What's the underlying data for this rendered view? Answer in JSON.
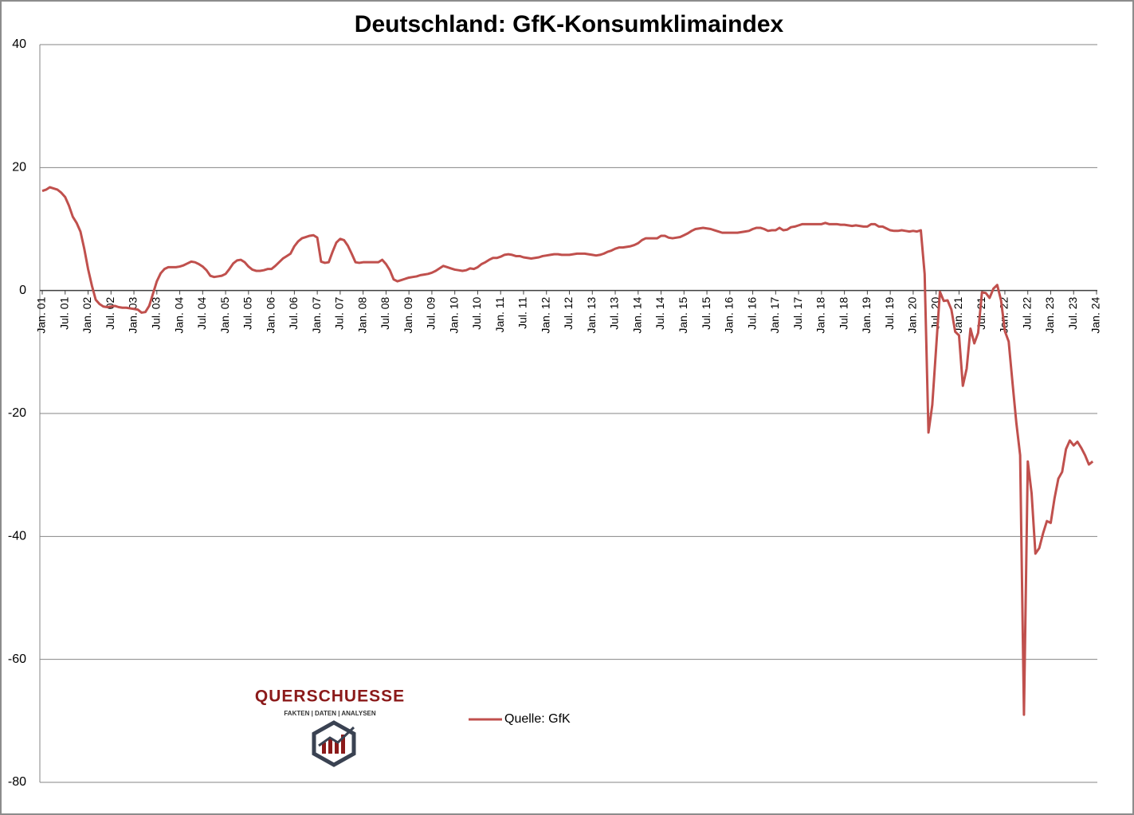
{
  "chart_data": {
    "type": "line",
    "title": "Deutschland: GfK-Konsumklimaindex",
    "categories": [
      "Jan. 01",
      null,
      null,
      null,
      null,
      null,
      "Jul. 01",
      null,
      null,
      null,
      null,
      null,
      "Jan. 02",
      null,
      null,
      null,
      null,
      null,
      "Jul. 02",
      null,
      null,
      null,
      null,
      null,
      "Jan. 03",
      null,
      null,
      null,
      null,
      null,
      "Jul. 03",
      null,
      null,
      null,
      null,
      null,
      "Jan. 04",
      null,
      null,
      null,
      null,
      null,
      "Jul. 04",
      null,
      null,
      null,
      null,
      null,
      "Jan. 05",
      null,
      null,
      null,
      null,
      null,
      "Jul. 05",
      null,
      null,
      null,
      null,
      null,
      "Jan. 06",
      null,
      null,
      null,
      null,
      null,
      "Jul. 06",
      null,
      null,
      null,
      null,
      null,
      "Jan. 07",
      null,
      null,
      null,
      null,
      null,
      "Jul. 07",
      null,
      null,
      null,
      null,
      null,
      "Jan. 08",
      null,
      null,
      null,
      null,
      null,
      "Jul. 08",
      null,
      null,
      null,
      null,
      null,
      "Jan. 09",
      null,
      null,
      null,
      null,
      null,
      "Jul. 09",
      null,
      null,
      null,
      null,
      null,
      "Jan. 10",
      null,
      null,
      null,
      null,
      null,
      "Jul. 10",
      null,
      null,
      null,
      null,
      null,
      "Jan. 11",
      null,
      null,
      null,
      null,
      null,
      "Jul. 11",
      null,
      null,
      null,
      null,
      null,
      "Jan. 12",
      null,
      null,
      null,
      null,
      null,
      "Jul. 12",
      null,
      null,
      null,
      null,
      null,
      "Jan. 13",
      null,
      null,
      null,
      null,
      null,
      "Jul. 13",
      null,
      null,
      null,
      null,
      null,
      "Jan. 14",
      null,
      null,
      null,
      null,
      null,
      "Jul. 14",
      null,
      null,
      null,
      null,
      null,
      "Jan. 15",
      null,
      null,
      null,
      null,
      null,
      "Jul. 15",
      null,
      null,
      null,
      null,
      null,
      "Jan. 16",
      null,
      null,
      null,
      null,
      null,
      "Jul. 16",
      null,
      null,
      null,
      null,
      null,
      "Jan. 17",
      null,
      null,
      null,
      null,
      null,
      "Jul. 17",
      null,
      null,
      null,
      null,
      null,
      "Jan. 18",
      null,
      null,
      null,
      null,
      null,
      "Jul. 18",
      null,
      null,
      null,
      null,
      null,
      "Jan. 19",
      null,
      null,
      null,
      null,
      null,
      "Jul. 19",
      null,
      null,
      null,
      null,
      null,
      "Jan. 20",
      null,
      null,
      null,
      null,
      null,
      "Jul. 20",
      null,
      null,
      null,
      null,
      null,
      "Jan. 21",
      null,
      null,
      null,
      null,
      null,
      "Jul. 21",
      null,
      null,
      null,
      null,
      null,
      "Jan. 22",
      null,
      null,
      null,
      null,
      null,
      "Jul. 22",
      null,
      null,
      null,
      null,
      null,
      "Jan. 23",
      null,
      null,
      null,
      null,
      null,
      "Jul. 23",
      null,
      null,
      null,
      null,
      null,
      "Jan. 24"
    ],
    "series": [
      {
        "name": "Quelle: GfK",
        "color": "#c0504d",
        "values": [
          16.2,
          16.4,
          16.8,
          16.6,
          16.4,
          15.9,
          15.2,
          13.8,
          12.0,
          11.0,
          9.6,
          6.8,
          3.5,
          0.8,
          -1.5,
          -2.2,
          -2.6,
          -2.7,
          -2.6,
          -2.5,
          -2.7,
          -2.8,
          -2.8,
          -2.9,
          -3.0,
          -3.1,
          -3.6,
          -3.5,
          -2.5,
          -0.5,
          1.5,
          2.8,
          3.5,
          3.8,
          3.8,
          3.8,
          3.9,
          4.1,
          4.4,
          4.7,
          4.6,
          4.3,
          3.9,
          3.3,
          2.4,
          2.2,
          2.3,
          2.4,
          2.7,
          3.5,
          4.4,
          4.9,
          5.0,
          4.6,
          3.9,
          3.4,
          3.2,
          3.2,
          3.3,
          3.5,
          3.5,
          4.0,
          4.6,
          5.2,
          5.6,
          6.0,
          7.2,
          8.0,
          8.5,
          8.7,
          8.9,
          9.0,
          8.6,
          4.7,
          4.5,
          4.6,
          6.3,
          7.8,
          8.4,
          8.2,
          7.3,
          6.0,
          4.6,
          4.5,
          4.6,
          4.6,
          4.6,
          4.6,
          4.6,
          5.0,
          4.3,
          3.3,
          1.8,
          1.5,
          1.7,
          1.9,
          2.1,
          2.2,
          2.3,
          2.5,
          2.6,
          2.7,
          2.9,
          3.2,
          3.6,
          4.0,
          3.8,
          3.6,
          3.4,
          3.3,
          3.2,
          3.3,
          3.6,
          3.5,
          3.8,
          4.3,
          4.6,
          5.0,
          5.3,
          5.3,
          5.5,
          5.8,
          5.9,
          5.8,
          5.6,
          5.6,
          5.4,
          5.3,
          5.2,
          5.3,
          5.4,
          5.6,
          5.7,
          5.8,
          5.9,
          5.9,
          5.8,
          5.8,
          5.8,
          5.9,
          6.0,
          6.0,
          6.0,
          5.9,
          5.8,
          5.7,
          5.8,
          6.0,
          6.3,
          6.5,
          6.8,
          7.0,
          7.0,
          7.1,
          7.2,
          7.4,
          7.7,
          8.2,
          8.5,
          8.5,
          8.5,
          8.5,
          8.9,
          8.9,
          8.6,
          8.5,
          8.6,
          8.7,
          9.0,
          9.3,
          9.7,
          10.0,
          10.1,
          10.2,
          10.1,
          10.0,
          9.8,
          9.6,
          9.4,
          9.4,
          9.4,
          9.4,
          9.4,
          9.5,
          9.6,
          9.7,
          10.0,
          10.2,
          10.2,
          10.0,
          9.7,
          9.8,
          9.8,
          10.2,
          9.8,
          9.9,
          10.3,
          10.4,
          10.6,
          10.8,
          10.8,
          10.8,
          10.8,
          10.8,
          10.8,
          11.0,
          10.8,
          10.8,
          10.8,
          10.7,
          10.7,
          10.6,
          10.5,
          10.6,
          10.5,
          10.4,
          10.4,
          10.8,
          10.8,
          10.4,
          10.4,
          10.1,
          9.8,
          9.7,
          9.7,
          9.8,
          9.7,
          9.6,
          9.7,
          9.6,
          9.8,
          2.7,
          -23.1,
          -18.6,
          -9.4,
          -0.2,
          -1.7,
          -1.6,
          -3.1,
          -6.7,
          -7.3,
          -15.5,
          -12.7,
          -6.2,
          -8.6,
          -6.9,
          -0.3,
          -0.4,
          -1.2,
          0.3,
          0.9,
          -1.6,
          -6.6,
          -8.3,
          -15.0,
          -21.5,
          -26.8,
          -69.0,
          -27.8,
          -33.0,
          -42.8,
          -41.9,
          -39.5,
          -37.5,
          -37.8,
          -33.8,
          -30.6,
          -29.5,
          -25.8,
          -24.4,
          -25.2,
          -24.6,
          -25.6,
          -26.8,
          -28.3,
          -27.8,
          null
        ]
      }
    ],
    "ylim": [
      -80,
      40
    ],
    "yticks": [
      -80,
      -60,
      -40,
      -20,
      0,
      20,
      40
    ],
    "grid": true
  },
  "watermark": {
    "brand": "QUERSCHUESSE",
    "tagline": "FAKTEN | DATEN | ANALYSEN"
  }
}
